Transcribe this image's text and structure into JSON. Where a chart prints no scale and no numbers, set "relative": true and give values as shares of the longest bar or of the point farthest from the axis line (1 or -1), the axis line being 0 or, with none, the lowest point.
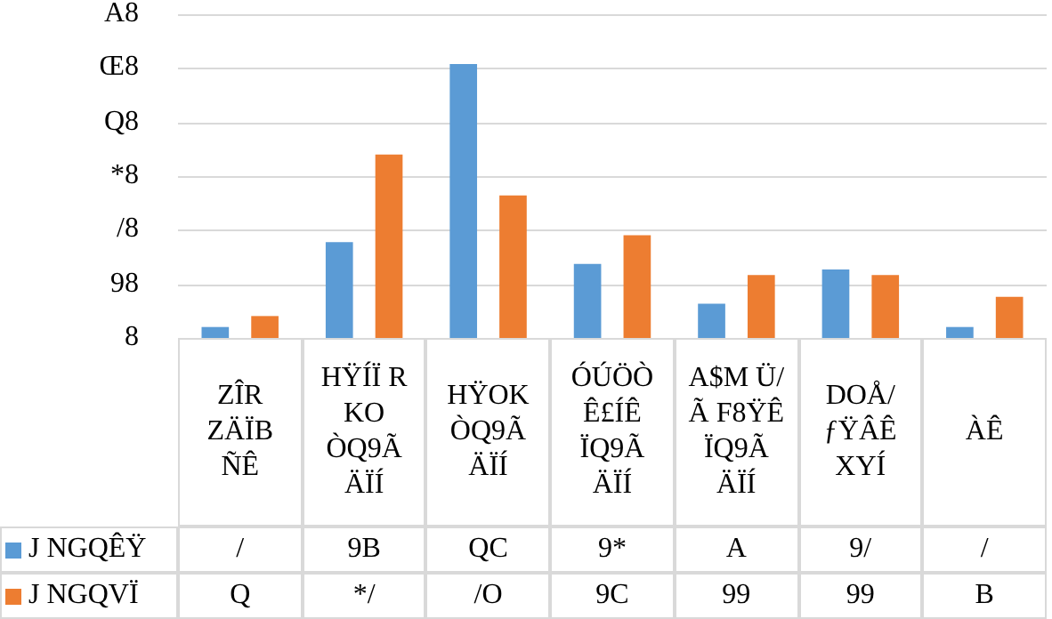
{
  "chart_data": {
    "type": "bar",
    "relative": true,
    "categories": [
      "ZÎR ZÄÏB ÑÊ",
      "HŸÍÏ R KO ÒQ9Ã ÄÏÍ",
      "HŸOK ÒQ9Ã ÄÏÍ",
      "ÓÚÖÒ Ê£ÍÊ ÏQ9Ã ÄÏÍ",
      "A$M Ü/Ã F8ŸÊ ÏQ9Ã ÄÏÍ",
      "DOÅ/ ƒŸÂÊ XYÍ",
      "ÀÊ"
    ],
    "series": [
      {
        "name": "J NGQÊŸ",
        "color": "#5b9bd5",
        "values": [
          0.04,
          0.35,
          1,
          0.27,
          0.125,
          0.25,
          0.04
        ]
      },
      {
        "name": "J NGQVÏ",
        "color": "#ed7d31",
        "values": [
          0.08,
          0.67,
          0.52,
          0.375,
          0.23,
          0.23,
          0.15
        ]
      }
    ],
    "annotations": [
      "8",
      "98",
      "/8",
      "*8",
      "Q8",
      "Œ8",
      "A8",
      "/",
      "9B",
      "QC",
      "9*",
      "A",
      "9/",
      "/",
      "Q",
      "*/",
      "/O",
      "9C",
      "99",
      "99",
      "B"
    ],
    "grid": "y",
    "legend": "bottom left"
  }
}
